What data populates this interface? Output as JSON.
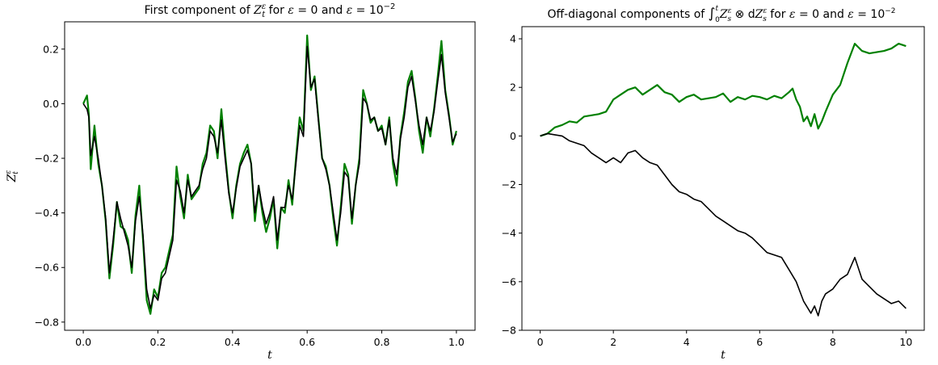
{
  "chart_data": [
    {
      "type": "line",
      "title": {
        "prefix": "First component of ",
        "var": "Z",
        "sub": "t",
        "sup": "ε",
        "mid": " for ",
        "eps1": "ε",
        "eq1": " = 0 and ",
        "eps2": "ε",
        "eq2": " = 10",
        "exp": "−2"
      },
      "xlabel": "t",
      "ylabel": {
        "var": "Z",
        "sub": "t",
        "sup": "ε"
      },
      "xlim": [
        -0.05,
        1.05
      ],
      "ylim": [
        -0.83,
        0.3
      ],
      "xticks": [
        0.0,
        0.2,
        0.4,
        0.6,
        0.8,
        1.0
      ],
      "xtick_labels": [
        "0.0",
        "0.2",
        "0.4",
        "0.6",
        "0.8",
        "1.0"
      ],
      "yticks": [
        -0.8,
        -0.6,
        -0.4,
        -0.2,
        0.0,
        0.2
      ],
      "ytick_labels": [
        "−0.8",
        "−0.6",
        "−0.4",
        "−0.2",
        "0.0",
        "0.2"
      ],
      "grid": false,
      "series": [
        {
          "color": "#008000",
          "x": [
            0.0,
            0.01,
            0.015,
            0.02,
            0.03,
            0.04,
            0.05,
            0.06,
            0.07,
            0.08,
            0.09,
            0.1,
            0.11,
            0.12,
            0.13,
            0.14,
            0.15,
            0.16,
            0.17,
            0.18,
            0.19,
            0.2,
            0.21,
            0.22,
            0.23,
            0.24,
            0.25,
            0.26,
            0.27,
            0.28,
            0.29,
            0.3,
            0.31,
            0.32,
            0.33,
            0.34,
            0.35,
            0.36,
            0.37,
            0.38,
            0.39,
            0.4,
            0.41,
            0.42,
            0.43,
            0.44,
            0.45,
            0.46,
            0.47,
            0.48,
            0.49,
            0.5,
            0.51,
            0.52,
            0.53,
            0.54,
            0.55,
            0.56,
            0.57,
            0.58,
            0.59,
            0.6,
            0.61,
            0.62,
            0.63,
            0.64,
            0.65,
            0.66,
            0.67,
            0.68,
            0.69,
            0.7,
            0.71,
            0.72,
            0.73,
            0.74,
            0.75,
            0.76,
            0.77,
            0.78,
            0.79,
            0.8,
            0.81,
            0.82,
            0.83,
            0.84,
            0.85,
            0.86,
            0.87,
            0.88,
            0.89,
            0.9,
            0.91,
            0.92,
            0.93,
            0.94,
            0.95,
            0.96,
            0.97,
            0.98,
            0.99,
            1.0
          ],
          "y": [
            0.0,
            0.03,
            -0.04,
            -0.24,
            -0.08,
            -0.22,
            -0.3,
            -0.43,
            -0.64,
            -0.52,
            -0.36,
            -0.45,
            -0.46,
            -0.5,
            -0.62,
            -0.41,
            -0.3,
            -0.5,
            -0.72,
            -0.77,
            -0.68,
            -0.71,
            -0.62,
            -0.6,
            -0.54,
            -0.48,
            -0.23,
            -0.34,
            -0.42,
            -0.26,
            -0.35,
            -0.33,
            -0.31,
            -0.22,
            -0.18,
            -0.08,
            -0.1,
            -0.2,
            -0.02,
            -0.18,
            -0.32,
            -0.42,
            -0.3,
            -0.22,
            -0.18,
            -0.15,
            -0.22,
            -0.43,
            -0.3,
            -0.4,
            -0.47,
            -0.42,
            -0.35,
            -0.53,
            -0.38,
            -0.4,
            -0.28,
            -0.37,
            -0.2,
            -0.05,
            -0.1,
            0.25,
            0.05,
            0.1,
            -0.05,
            -0.2,
            -0.23,
            -0.3,
            -0.42,
            -0.52,
            -0.38,
            -0.22,
            -0.26,
            -0.44,
            -0.3,
            -0.2,
            0.05,
            0.0,
            -0.07,
            -0.05,
            -0.1,
            -0.08,
            -0.15,
            -0.05,
            -0.22,
            -0.3,
            -0.12,
            -0.03,
            0.08,
            0.12,
            0.02,
            -0.1,
            -0.18,
            -0.05,
            -0.12,
            -0.02,
            0.1,
            0.23,
            0.05,
            -0.04,
            -0.15,
            -0.1
          ]
        },
        {
          "color": "#000000",
          "x": [
            0.0,
            0.01,
            0.015,
            0.02,
            0.03,
            0.04,
            0.05,
            0.06,
            0.07,
            0.08,
            0.09,
            0.1,
            0.11,
            0.12,
            0.13,
            0.14,
            0.15,
            0.16,
            0.17,
            0.18,
            0.19,
            0.2,
            0.21,
            0.22,
            0.23,
            0.24,
            0.25,
            0.26,
            0.27,
            0.28,
            0.29,
            0.3,
            0.31,
            0.32,
            0.33,
            0.34,
            0.35,
            0.36,
            0.37,
            0.38,
            0.39,
            0.4,
            0.41,
            0.42,
            0.43,
            0.44,
            0.45,
            0.46,
            0.47,
            0.48,
            0.49,
            0.5,
            0.51,
            0.52,
            0.53,
            0.54,
            0.55,
            0.56,
            0.57,
            0.58,
            0.59,
            0.6,
            0.61,
            0.62,
            0.63,
            0.64,
            0.65,
            0.66,
            0.67,
            0.68,
            0.69,
            0.7,
            0.71,
            0.72,
            0.73,
            0.74,
            0.75,
            0.76,
            0.77,
            0.78,
            0.79,
            0.8,
            0.81,
            0.82,
            0.83,
            0.84,
            0.85,
            0.86,
            0.87,
            0.88,
            0.89,
            0.9,
            0.91,
            0.92,
            0.93,
            0.94,
            0.95,
            0.96,
            0.97,
            0.98,
            0.99,
            1.0
          ],
          "y": [
            0.0,
            -0.02,
            -0.05,
            -0.19,
            -0.12,
            -0.2,
            -0.3,
            -0.42,
            -0.62,
            -0.5,
            -0.36,
            -0.42,
            -0.47,
            -0.52,
            -0.6,
            -0.43,
            -0.34,
            -0.48,
            -0.68,
            -0.75,
            -0.7,
            -0.72,
            -0.64,
            -0.62,
            -0.56,
            -0.5,
            -0.28,
            -0.32,
            -0.4,
            -0.28,
            -0.34,
            -0.32,
            -0.3,
            -0.24,
            -0.2,
            -0.1,
            -0.12,
            -0.18,
            -0.06,
            -0.2,
            -0.33,
            -0.4,
            -0.31,
            -0.23,
            -0.2,
            -0.17,
            -0.22,
            -0.4,
            -0.3,
            -0.38,
            -0.44,
            -0.4,
            -0.34,
            -0.5,
            -0.38,
            -0.38,
            -0.3,
            -0.35,
            -0.22,
            -0.08,
            -0.12,
            0.21,
            0.06,
            0.09,
            -0.06,
            -0.2,
            -0.24,
            -0.3,
            -0.4,
            -0.5,
            -0.4,
            -0.25,
            -0.27,
            -0.42,
            -0.3,
            -0.22,
            0.02,
            0.0,
            -0.06,
            -0.05,
            -0.1,
            -0.09,
            -0.15,
            -0.06,
            -0.2,
            -0.26,
            -0.13,
            -0.05,
            0.06,
            0.1,
            0.01,
            -0.08,
            -0.15,
            -0.05,
            -0.1,
            -0.03,
            0.08,
            0.18,
            0.04,
            -0.05,
            -0.14,
            -0.11
          ]
        }
      ]
    },
    {
      "type": "line",
      "title": {
        "prefix": "Off-diagonal components of ",
        "int_sym": "∫",
        "int_lo": "0",
        "int_hi": "t",
        "var1": "Z",
        "var1_sub": "s",
        "var1_sup": "ε",
        "op": " ⊗ ",
        "d": "d",
        "var2": "Z",
        "var2_sub": "s",
        "var2_sup": "ε",
        "mid": " for ",
        "eps1": "ε",
        "eq1": " = 0 and ",
        "eps2": "ε",
        "eq2": " = 10",
        "exp": "−2"
      },
      "xlabel": "t",
      "ylabel": "",
      "xlim": [
        -0.5,
        10.5
      ],
      "ylim": [
        -8.0,
        4.5
      ],
      "xticks": [
        0,
        2,
        4,
        6,
        8,
        10
      ],
      "xtick_labels": [
        "0",
        "2",
        "4",
        "6",
        "8",
        "10"
      ],
      "yticks": [
        -8,
        -6,
        -4,
        -2,
        0,
        2,
        4
      ],
      "ytick_labels": [
        "−8",
        "−6",
        "−4",
        "−2",
        "0",
        "2",
        "4"
      ],
      "grid": false,
      "series": [
        {
          "color": "#008000",
          "x": [
            0.0,
            0.2,
            0.4,
            0.6,
            0.8,
            1.0,
            1.2,
            1.4,
            1.6,
            1.8,
            2.0,
            2.2,
            2.4,
            2.6,
            2.8,
            3.0,
            3.2,
            3.4,
            3.6,
            3.8,
            4.0,
            4.2,
            4.4,
            4.6,
            4.8,
            5.0,
            5.2,
            5.4,
            5.6,
            5.8,
            6.0,
            6.2,
            6.4,
            6.6,
            6.8,
            6.9,
            7.0,
            7.1,
            7.2,
            7.3,
            7.4,
            7.5,
            7.6,
            7.7,
            7.8,
            8.0,
            8.2,
            8.4,
            8.6,
            8.8,
            9.0,
            9.2,
            9.4,
            9.6,
            9.8,
            10.0
          ],
          "y": [
            0.0,
            0.1,
            0.35,
            0.45,
            0.6,
            0.55,
            0.8,
            0.85,
            0.9,
            1.0,
            1.5,
            1.7,
            1.9,
            2.0,
            1.7,
            1.9,
            2.1,
            1.8,
            1.7,
            1.4,
            1.6,
            1.7,
            1.5,
            1.55,
            1.6,
            1.75,
            1.4,
            1.6,
            1.5,
            1.65,
            1.6,
            1.5,
            1.65,
            1.55,
            1.8,
            1.95,
            1.5,
            1.2,
            0.6,
            0.8,
            0.4,
            0.9,
            0.3,
            0.6,
            1.0,
            1.7,
            2.1,
            3.0,
            3.8,
            3.5,
            3.4,
            3.45,
            3.5,
            3.6,
            3.8,
            3.7
          ]
        },
        {
          "color": "#000000",
          "x": [
            0.0,
            0.2,
            0.4,
            0.6,
            0.8,
            1.0,
            1.2,
            1.4,
            1.6,
            1.8,
            2.0,
            2.2,
            2.4,
            2.6,
            2.8,
            3.0,
            3.2,
            3.4,
            3.6,
            3.8,
            4.0,
            4.2,
            4.4,
            4.6,
            4.8,
            5.0,
            5.2,
            5.4,
            5.6,
            5.8,
            6.0,
            6.2,
            6.4,
            6.6,
            6.8,
            7.0,
            7.2,
            7.4,
            7.5,
            7.6,
            7.7,
            7.8,
            8.0,
            8.2,
            8.4,
            8.6,
            8.8,
            9.0,
            9.2,
            9.4,
            9.6,
            9.8,
            10.0
          ],
          "y": [
            0.0,
            0.1,
            0.05,
            0.0,
            -0.2,
            -0.3,
            -0.4,
            -0.7,
            -0.9,
            -1.1,
            -0.9,
            -1.1,
            -0.7,
            -0.6,
            -0.9,
            -1.1,
            -1.2,
            -1.6,
            -2.0,
            -2.3,
            -2.4,
            -2.6,
            -2.7,
            -3.0,
            -3.3,
            -3.5,
            -3.7,
            -3.9,
            -4.0,
            -4.2,
            -4.5,
            -4.8,
            -4.9,
            -5.0,
            -5.5,
            -6.0,
            -6.8,
            -7.3,
            -7.0,
            -7.4,
            -6.8,
            -6.5,
            -6.3,
            -5.9,
            -5.7,
            -5.0,
            -5.9,
            -6.2,
            -6.5,
            -6.7,
            -6.9,
            -6.8,
            -7.1
          ]
        }
      ]
    }
  ]
}
